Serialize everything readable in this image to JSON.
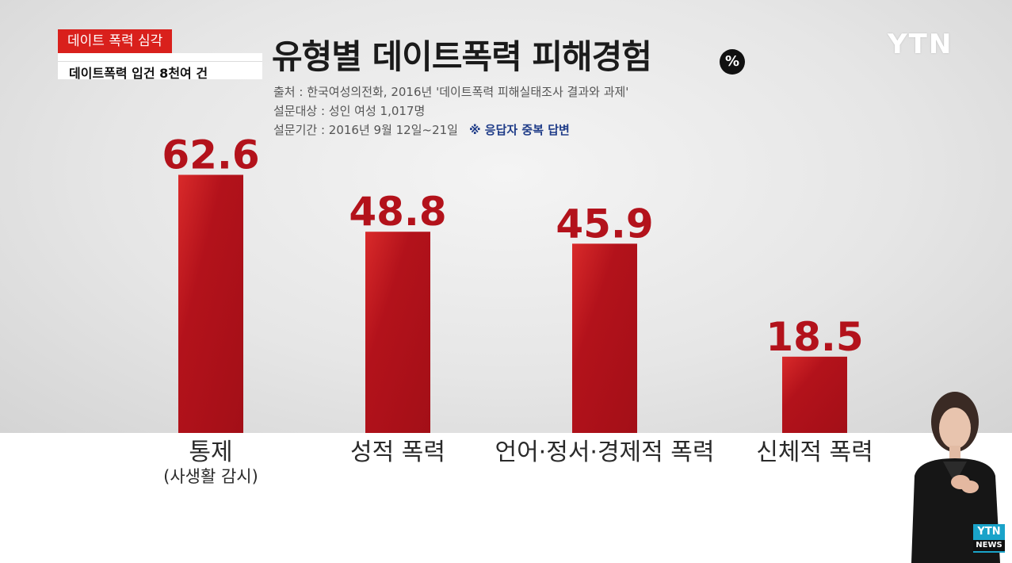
{
  "ticker": {
    "tag": "데이트 폭력 심각",
    "line_faded": "",
    "line": "데이트폭력 입건 8천여 건"
  },
  "header": {
    "title": "유형별 데이트폭력 피해경험",
    "unit_badge": "%",
    "source": "출처 : 한국여성의전화, 2016년 '데이트폭력 피해실태조사 결과와 과제'",
    "target": "설문대상 : 성인 여성 1,017명",
    "period": "설문기간 : 2016년 9월 12일~21일",
    "note": "※ 응답자 중복 답변"
  },
  "logo": "YTN",
  "corner_badge": {
    "top": "YTN",
    "bottom": "NEWS"
  },
  "colors": {
    "bar": "#b3121b",
    "bar_highlight": "#d92a2a",
    "label": "#b3121b"
  },
  "chart_data": {
    "type": "bar",
    "title": "유형별 데이트폭력 피해경험",
    "unit": "%",
    "categories": [
      "통제",
      "성적 폭력",
      "언어·정서·경제적 폭력",
      "신체적 폭력"
    ],
    "category_sublabels": [
      "(사생활 감시)",
      "",
      "",
      ""
    ],
    "values": [
      62.6,
      48.8,
      45.9,
      18.5
    ],
    "value_labels": [
      "62.6",
      "48.8",
      "45.9",
      "18.5"
    ],
    "ylim": [
      0,
      65
    ],
    "grid": false,
    "legend": "none"
  }
}
